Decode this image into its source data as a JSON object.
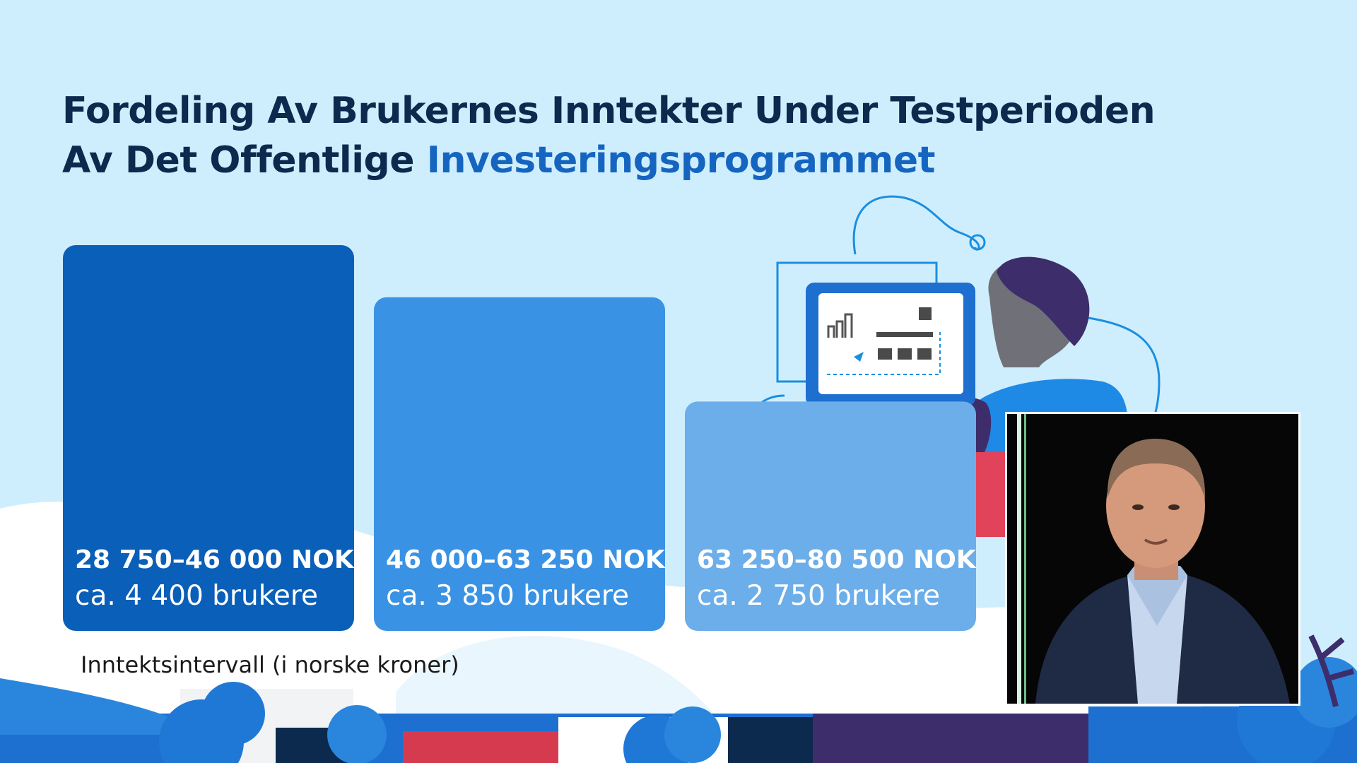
{
  "title": {
    "line1": "Fordeling Av Brukernes Inntekter Under Testperioden",
    "line2_prefix": "Av Det Offentlige",
    "line2_accent": "Investeringsprogrammet"
  },
  "colors": {
    "background": "#cfeefd",
    "title": "#0c2a4d",
    "accent": "#1565c0",
    "bars": [
      "#0a5fb8",
      "#3a92e4",
      "#6caee9"
    ]
  },
  "chart_data": {
    "type": "bar",
    "title": "Fordeling Av Brukernes Inntekter Under Testperioden Av Det Offentlige Investeringsprogrammet",
    "xlabel": "Inntektsintervall (i norske kroner)",
    "ylabel": "",
    "categories": [
      "28 750–46 000 NOK",
      "46 000–63 250 NOK",
      "63 250–80 500 NOK"
    ],
    "series": [
      {
        "values": [
          4400,
          3850,
          2750
        ],
        "value_labels": [
          "ca. 4 400 brukere",
          "ca. 3 850 brukere",
          "ca. 2 750 brukere"
        ]
      }
    ],
    "ylim": [
      2000,
      4400
    ],
    "grid": false
  },
  "illustration": {
    "description_icons": [
      "person-at-computer-illustration",
      "city-skyline-illustration"
    ]
  },
  "video_inset": {
    "icon": "presenter-video-inset"
  }
}
